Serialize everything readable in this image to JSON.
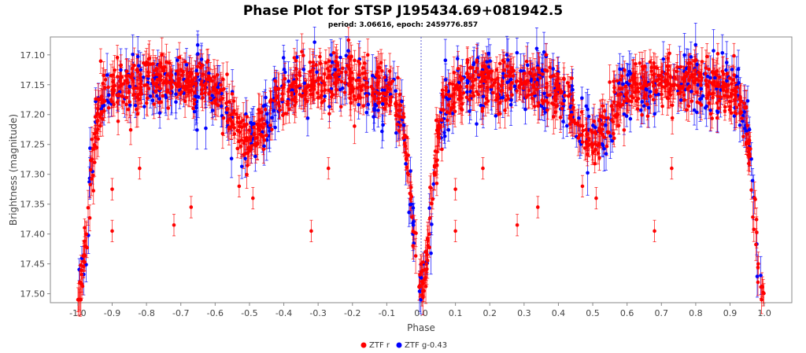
{
  "chart_data": {
    "type": "scatter",
    "title": "Phase Plot for STSP J195434.69+081942.5",
    "subtitle": "period: 3.06616, epoch: 2459776.857",
    "xlabel": "Phase",
    "ylabel": "Brightness (magnitude)",
    "xlim": [
      -1.08,
      1.08
    ],
    "ylim": [
      17.07,
      17.515
    ],
    "y_inverted": true,
    "xticks": [
      "-1.0",
      "-0.9",
      "-0.8",
      "-0.7",
      "-0.6",
      "-0.5",
      "-0.4",
      "-0.3",
      "-0.2",
      "-0.1",
      "0.0",
      "0.1",
      "0.2",
      "0.3",
      "0.4",
      "0.5",
      "0.6",
      "0.7",
      "0.8",
      "0.9",
      "1.0"
    ],
    "yticks": [
      "17.10",
      "17.15",
      "17.20",
      "17.25",
      "17.30",
      "17.35",
      "17.40",
      "17.45",
      "17.50"
    ],
    "reference_line_x": 0.0,
    "legend_position": "bottom-center",
    "light_curve_model": {
      "baseline_magnitude": 17.155,
      "primary_eclipse": {
        "phase": 0.0,
        "depth": 0.33,
        "width": 0.04
      },
      "secondary_eclipse": {
        "phase": 0.5,
        "depth": 0.075,
        "width": 0.06
      },
      "noise_sigma_r": 0.022,
      "noise_sigma_g": 0.028,
      "error_bar_r": 0.02,
      "error_bar_g": 0.025,
      "phase_range": [
        -1.0,
        1.0
      ]
    },
    "series": [
      {
        "name": "ZTF r",
        "color": "#ff0000",
        "point_count": 1400
      },
      {
        "name": "ZTF g-0.43",
        "color": "#0000ff",
        "point_count": 500
      }
    ],
    "outliers": [
      {
        "x": -0.9,
        "y": 17.325
      },
      {
        "x": -0.9,
        "y": 17.395
      },
      {
        "x": -0.72,
        "y": 17.385
      },
      {
        "x": -0.67,
        "y": 17.355
      },
      {
        "x": -0.82,
        "y": 17.29
      },
      {
        "x": -0.53,
        "y": 17.32
      },
      {
        "x": -0.49,
        "y": 17.34
      },
      {
        "x": -0.32,
        "y": 17.395
      },
      {
        "x": -0.27,
        "y": 17.29
      },
      {
        "x": 0.1,
        "y": 17.325
      },
      {
        "x": 0.1,
        "y": 17.395
      },
      {
        "x": 0.28,
        "y": 17.385
      },
      {
        "x": 0.34,
        "y": 17.355
      },
      {
        "x": 0.18,
        "y": 17.29
      },
      {
        "x": 0.47,
        "y": 17.32
      },
      {
        "x": 0.51,
        "y": 17.34
      },
      {
        "x": 0.68,
        "y": 17.395
      },
      {
        "x": 0.73,
        "y": 17.29
      }
    ]
  }
}
